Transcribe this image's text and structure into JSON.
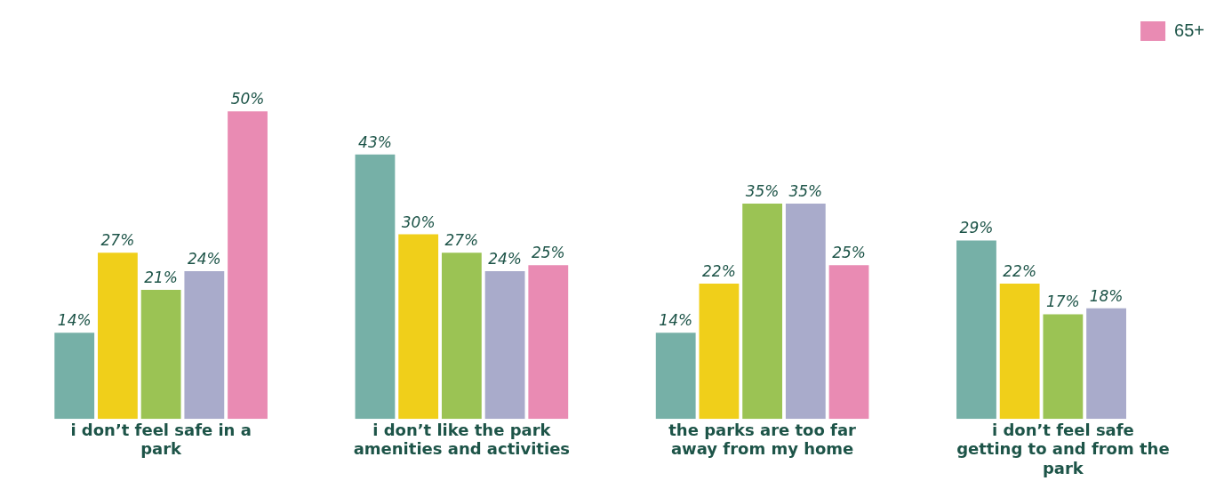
{
  "chart_data": {
    "type": "bar",
    "categories": [
      "i don’t feel safe in a park",
      "i don’t like the park amenities and activities",
      "the parks are too far away from my home",
      "i don’t feel safe getting to and from the park"
    ],
    "series": [
      {
        "color": "#76b0a7",
        "values": [
          14,
          43,
          14,
          29
        ],
        "value_labels": [
          "14%",
          "43%",
          "14%",
          "29%"
        ]
      },
      {
        "color": "#f0cf1a",
        "values": [
          27,
          30,
          22,
          22
        ],
        "value_labels": [
          "27%",
          "30%",
          "22%",
          "22%"
        ]
      },
      {
        "color": "#9bc354",
        "values": [
          21,
          27,
          35,
          17
        ],
        "value_labels": [
          "21%",
          "27%",
          "35%",
          "17%"
        ]
      },
      {
        "color": "#a9abcb",
        "values": [
          24,
          24,
          35,
          18
        ],
        "value_labels": [
          "24%",
          "24%",
          "35%",
          "18%"
        ]
      },
      {
        "name": "65+",
        "color": "#e98bb3",
        "values": [
          50,
          25,
          25,
          null
        ],
        "value_labels": [
          "50%",
          "25%",
          "25%",
          null
        ]
      }
    ],
    "legend": "top right",
    "grid": false
  }
}
